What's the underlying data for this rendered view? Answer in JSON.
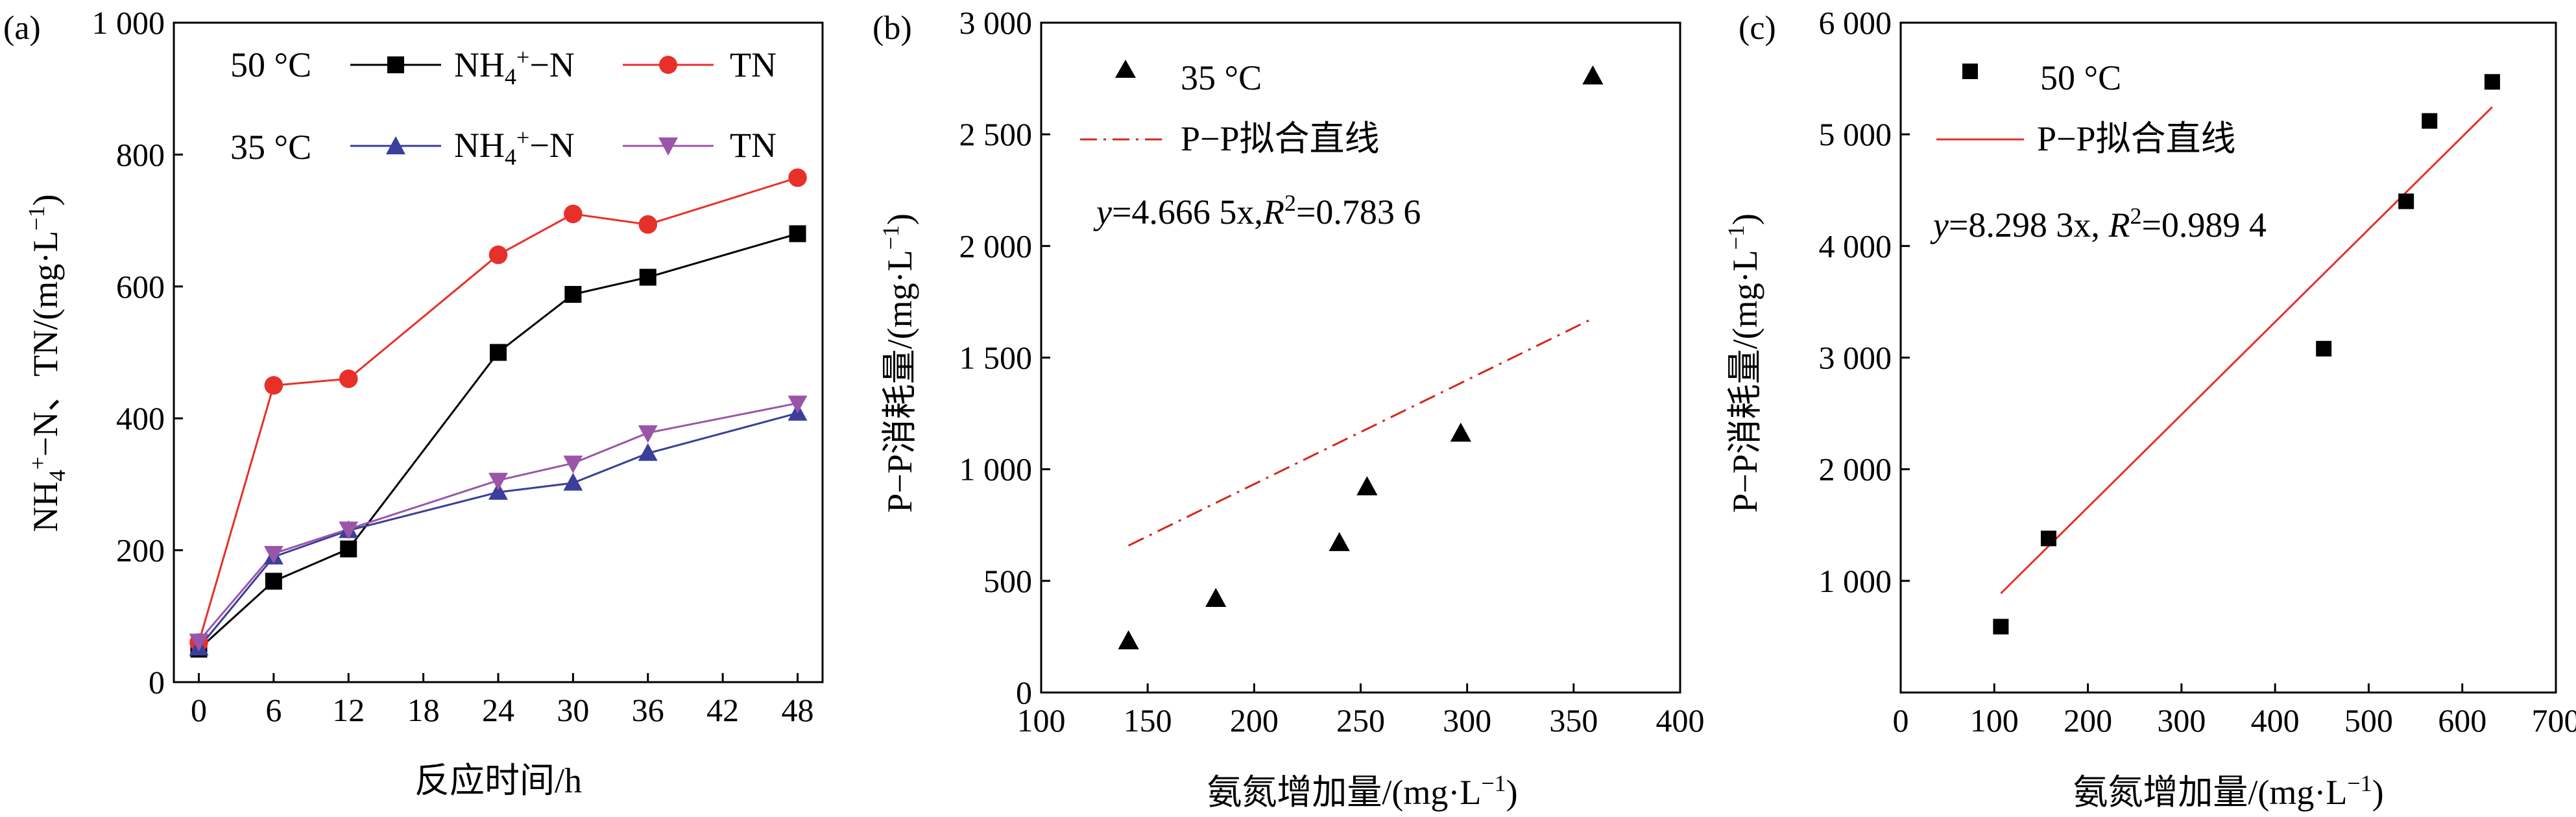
{
  "colors": {
    "nh4_50": "#000000",
    "tn_50": "#e8302a",
    "nh4_35": "#3b3e9a",
    "tn_35": "#9b55a8",
    "fit_b": "#d4281c",
    "fit_c": "#e8302a",
    "points": "#000000"
  },
  "chart_data": [
    {
      "type": "line",
      "panel_label": "(a)",
      "xlabel": "反应时间/h",
      "ylabel": "NH4+−N、TN/(mg·L−1)",
      "xlim": [
        -2,
        50
      ],
      "ylim": [
        0,
        1000
      ],
      "xticks": [
        0,
        6,
        12,
        18,
        24,
        30,
        36,
        42,
        48
      ],
      "xtick_labels": [
        "0",
        "6",
        "12",
        "18",
        "24",
        "30",
        "36",
        "42",
        "48"
      ],
      "yticks": [
        0,
        200,
        400,
        600,
        800,
        1000
      ],
      "ytick_labels": [
        "0",
        "200",
        "400",
        "600",
        "800",
        "1 000"
      ],
      "legend_groups": [
        "50 °C",
        "35 °C"
      ],
      "legend_placement": "top-left",
      "x": [
        0,
        6,
        12,
        24,
        30,
        36,
        48
      ],
      "series": [
        {
          "name": "NH4+−N",
          "group": "50 °C",
          "marker": "square",
          "color_key": "nh4_50",
          "values": [
            50,
            153,
            202,
            500,
            588,
            614,
            680
          ]
        },
        {
          "name": "TN",
          "group": "50 °C",
          "marker": "circle",
          "color_key": "tn_50",
          "values": [
            60,
            450,
            460,
            648,
            710,
            694,
            765
          ]
        },
        {
          "name": "NH4+−N",
          "group": "35 °C",
          "marker": "triangle-up",
          "color_key": "nh4_35",
          "values": [
            52,
            190,
            230,
            288,
            302,
            347,
            408
          ]
        },
        {
          "name": "TN",
          "group": "35 °C",
          "marker": "triangle-down",
          "color_key": "tn_35",
          "values": [
            62,
            195,
            232,
            306,
            332,
            378,
            423
          ]
        }
      ]
    },
    {
      "type": "scatter",
      "panel_label": "(b)",
      "xlabel": "氨氮增加量/(mg·L−1)",
      "ylabel": "P−P消耗量/(mg·L−1)",
      "xlim": [
        100,
        400
      ],
      "ylim": [
        0,
        3000
      ],
      "xticks": [
        100,
        150,
        200,
        250,
        300,
        350,
        400
      ],
      "xtick_labels": [
        "100",
        "150",
        "200",
        "250",
        "300",
        "350",
        "400"
      ],
      "yticks": [
        0,
        500,
        1000,
        1500,
        2000,
        2500,
        3000
      ],
      "ytick_labels": [
        "0",
        "500",
        "1 000",
        "1 500",
        "2 000",
        "2 500",
        "3 000"
      ],
      "legend_placement": "top-left",
      "series": [
        {
          "name": "35 °C",
          "marker": "triangle-up",
          "x": [
            141,
            182,
            240,
            253,
            297,
            359
          ],
          "y": [
            230,
            420,
            670,
            920,
            1160,
            2760
          ]
        }
      ],
      "fit": {
        "name": "P−P拟合直线",
        "style": "dash-dot",
        "color_key": "fit_b",
        "slope": 4.6665,
        "x_range": [
          141,
          359
        ]
      },
      "equation": {
        "y": "y",
        "rest": "=4.666 5x,",
        "r": "R",
        "sup": "2",
        "value": "=0.783 6"
      }
    },
    {
      "type": "scatter",
      "panel_label": "(c)",
      "xlabel": "氨氮增加量/(mg·L−1)",
      "ylabel": "P−P消耗量/(mg·L−1)",
      "xlim": [
        0,
        700
      ],
      "ylim": [
        0,
        6000
      ],
      "xticks": [
        0,
        100,
        200,
        300,
        400,
        500,
        600,
        700
      ],
      "xtick_labels": [
        "0",
        "100",
        "200",
        "300",
        "400",
        "500",
        "600",
        "700"
      ],
      "yticks": [
        1000,
        2000,
        3000,
        4000,
        5000,
        6000
      ],
      "ytick_labels": [
        "1 000",
        "2 000",
        "3 000",
        "4 000",
        "5 000",
        "6 000"
      ],
      "legend_placement": "top-left",
      "series": [
        {
          "name": "50 °C",
          "marker": "square",
          "x": [
            107,
            158,
            452,
            540,
            565,
            632
          ],
          "y": [
            590,
            1380,
            3080,
            4400,
            5120,
            5470
          ]
        }
      ],
      "fit": {
        "name": "P−P拟合直线",
        "style": "solid",
        "color_key": "fit_c",
        "slope": 8.2983,
        "x_range": [
          107,
          632
        ]
      },
      "equation": {
        "y": "y",
        "rest": "=8.298 3x, ",
        "r": "R",
        "sup": "2",
        "value": "=0.989 4"
      }
    }
  ]
}
